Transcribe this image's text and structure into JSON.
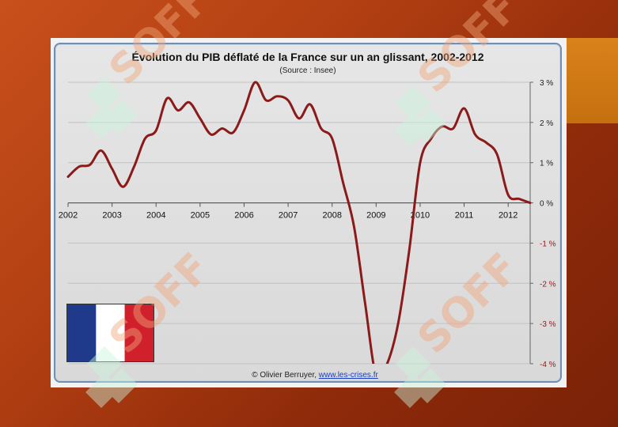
{
  "chart_data": {
    "type": "line",
    "title": "Évolution du PIB déflaté de la France sur un an glissant, 2002-2012",
    "subtitle": "(Source : Insee)",
    "x_tick_labels": [
      "2002",
      "2003",
      "2004",
      "2005",
      "2006",
      "2007",
      "2008",
      "2009",
      "2010",
      "2011",
      "2012"
    ],
    "y_tick_labels": [
      "3 %",
      "2 %",
      "1 %",
      "0 %",
      "-1 %",
      "-2 %",
      "-3 %",
      "-4 %"
    ],
    "xlim": [
      2002.0,
      2012.5
    ],
    "ylim": [
      -4,
      3
    ],
    "grid": true,
    "series_color": "#8b1a1a",
    "x": [
      2002.0,
      2002.25,
      2002.5,
      2002.75,
      2003.0,
      2003.25,
      2003.5,
      2003.75,
      2004.0,
      2004.25,
      2004.5,
      2004.75,
      2005.0,
      2005.25,
      2005.5,
      2005.75,
      2006.0,
      2006.25,
      2006.5,
      2006.75,
      2007.0,
      2007.25,
      2007.5,
      2007.75,
      2008.0,
      2008.25,
      2008.5,
      2008.75,
      2009.0,
      2009.25,
      2009.5,
      2009.75,
      2010.0,
      2010.25,
      2010.5,
      2010.75,
      2011.0,
      2011.25,
      2011.5,
      2011.75,
      2012.0,
      2012.25,
      2012.5
    ],
    "values": [
      0.65,
      0.9,
      0.95,
      1.3,
      0.85,
      0.4,
      0.9,
      1.6,
      1.8,
      2.6,
      2.3,
      2.5,
      2.1,
      1.7,
      1.85,
      1.75,
      2.3,
      3.0,
      2.55,
      2.65,
      2.55,
      2.1,
      2.45,
      1.85,
      1.6,
      0.5,
      -0.6,
      -2.5,
      -4.3,
      -4.0,
      -3.0,
      -1.2,
      1.0,
      1.6,
      1.9,
      1.85,
      2.35,
      1.7,
      1.5,
      1.2,
      0.2,
      0.1,
      0.0
    ]
  },
  "credit": {
    "prefix": "© Olivier Berruyer, ",
    "link": "www.les-crises.fr"
  },
  "flag_colors": [
    "#1f3a8a",
    "#ffffff",
    "#d0202c"
  ],
  "watermark_text": "SOFF"
}
